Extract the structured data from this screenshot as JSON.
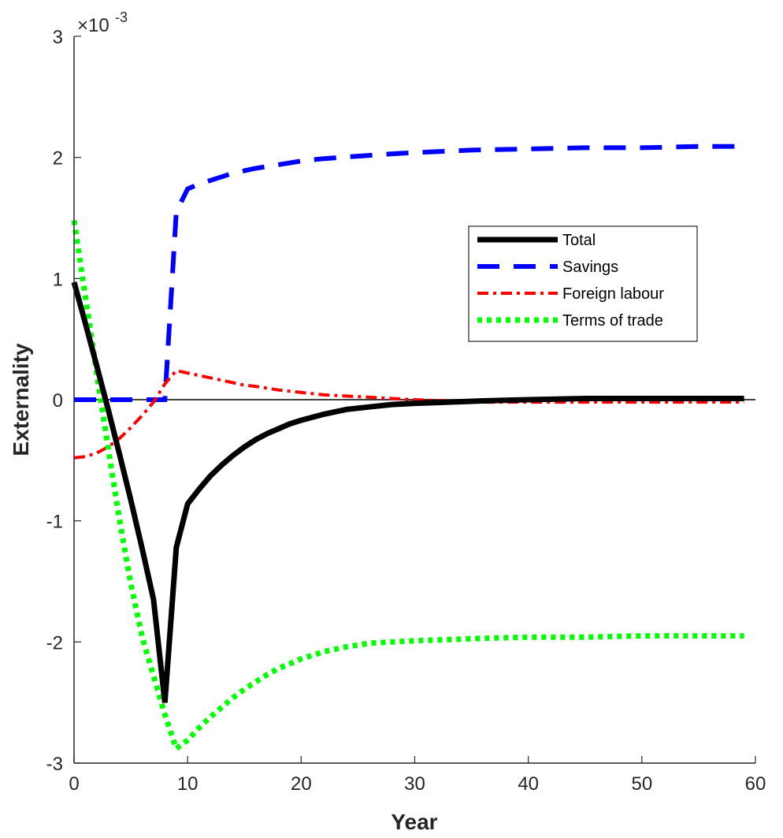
{
  "chart_data": {
    "type": "line",
    "xlabel": "Year",
    "ylabel": "Externality",
    "exponent_label": "×10",
    "exponent_power": "-3",
    "xlim": [
      0,
      60
    ],
    "ylim": [
      -0.003,
      0.003
    ],
    "xticks": [
      0,
      10,
      20,
      30,
      40,
      50,
      60
    ],
    "xtick_labels": [
      "0",
      "10",
      "20",
      "30",
      "40",
      "50",
      "60"
    ],
    "yticks": [
      -0.003,
      -0.002,
      -0.001,
      0,
      0.001,
      0.002,
      0.003
    ],
    "ytick_labels": [
      "-3",
      "-2",
      "-1",
      "0",
      "1",
      "2",
      "3"
    ],
    "grid": false,
    "legend_position": "right",
    "zero_line": true,
    "series": [
      {
        "name": "Total",
        "style": "solid",
        "color": "#000000",
        "x": [
          0,
          1,
          2,
          3,
          4,
          5,
          6,
          7,
          8,
          9,
          10,
          11,
          12,
          13,
          14,
          15,
          16,
          17,
          18,
          19,
          20,
          22,
          24,
          26,
          28,
          30,
          33,
          36,
          40,
          45,
          50,
          55,
          59
        ],
        "y": [
          0.00097,
          0.00063,
          0.00028,
          -8e-05,
          -0.00045,
          -0.00083,
          -0.00123,
          -0.00165,
          -0.0025,
          -0.00122,
          -0.00086,
          -0.00074,
          -0.00063,
          -0.00054,
          -0.00046,
          -0.00039,
          -0.00033,
          -0.00028,
          -0.00024,
          -0.0002,
          -0.00017,
          -0.00012,
          -8e-05,
          -6e-05,
          -4e-05,
          -3e-05,
          -2e-05,
          -1e-05,
          0.0,
          1e-05,
          1e-05,
          1e-05,
          1e-05
        ]
      },
      {
        "name": "Savings",
        "style": "dashed",
        "color": "#0000ff",
        "x": [
          0,
          1,
          2,
          3,
          4,
          5,
          6,
          7,
          8,
          9,
          10,
          11,
          12,
          13,
          14,
          15,
          16,
          18,
          20,
          22,
          25,
          28,
          30,
          35,
          40,
          45,
          50,
          55,
          59
        ],
        "y": [
          0,
          0,
          0,
          0,
          0,
          0,
          0,
          0,
          0,
          0.00155,
          0.00174,
          0.00178,
          0.00181,
          0.00184,
          0.00187,
          0.00189,
          0.00191,
          0.00194,
          0.00197,
          0.00199,
          0.00201,
          0.00203,
          0.00204,
          0.00206,
          0.00207,
          0.00208,
          0.00208,
          0.00209,
          0.00209
        ]
      },
      {
        "name": "Foreign labour",
        "style": "dashdot",
        "color": "#ff0000",
        "x": [
          0,
          1,
          2,
          3,
          4,
          5,
          6,
          7,
          8,
          9,
          10,
          11,
          12,
          13,
          14,
          15,
          16,
          18,
          20,
          22,
          24,
          26,
          28,
          30,
          33,
          36,
          40,
          45,
          50,
          55,
          59
        ],
        "y": [
          -0.00048,
          -0.00047,
          -0.00044,
          -0.00039,
          -0.00032,
          -0.00023,
          -0.00013,
          -2e-05,
          0.00013,
          0.00024,
          0.00022,
          0.0002,
          0.00018,
          0.00016,
          0.00014,
          0.00012,
          0.00011,
          8e-05,
          6e-05,
          4e-05,
          3e-05,
          2e-05,
          1e-05,
          0.0,
          -1e-05,
          -2e-05,
          -2e-05,
          -2e-05,
          -2e-05,
          -2e-05,
          -2e-05
        ]
      },
      {
        "name": "Terms of trade",
        "style": "dotted",
        "color": "#00ff00",
        "x": [
          0,
          1,
          2,
          3,
          4,
          5,
          6,
          7,
          8,
          9,
          10,
          11,
          12,
          13,
          14,
          15,
          16,
          17,
          18,
          19,
          20,
          22,
          24,
          26,
          28,
          30,
          33,
          36,
          40,
          45,
          50,
          55,
          59
        ],
        "y": [
          0.00148,
          0.00085,
          0.00022,
          -0.0004,
          -0.00099,
          -0.00152,
          -0.00196,
          -0.00228,
          -0.0026,
          -0.00288,
          -0.00281,
          -0.00271,
          -0.00262,
          -0.00254,
          -0.00246,
          -0.00239,
          -0.00233,
          -0.00227,
          -0.00222,
          -0.00218,
          -0.00214,
          -0.00208,
          -0.00204,
          -0.00201,
          -0.002,
          -0.00199,
          -0.00198,
          -0.00197,
          -0.00196,
          -0.00196,
          -0.00195,
          -0.00195,
          -0.00195
        ]
      }
    ]
  }
}
